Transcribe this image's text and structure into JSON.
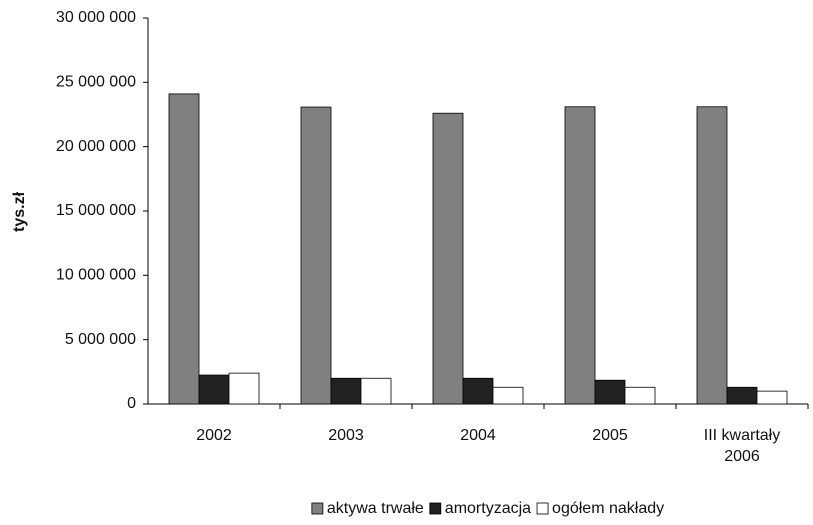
{
  "chart_data": {
    "type": "bar",
    "y_label": "tys.zł",
    "categories": [
      "2002",
      "2003",
      "2004",
      "2005",
      "III kwartały 2006"
    ],
    "series": [
      {
        "name": "aktywa trwałe",
        "color": "#808080",
        "values": [
          24100000,
          23080000,
          22600000,
          23100000,
          23100000
        ]
      },
      {
        "name": "amortyzacja",
        "color": "#222222",
        "values": [
          2250000,
          2000000,
          2000000,
          1850000,
          1300000
        ]
      },
      {
        "name": "ogółem nakłady",
        "color": "#ffffff",
        "values": [
          2400000,
          2000000,
          1300000,
          1300000,
          1000000
        ]
      }
    ],
    "ylim": [
      0,
      30000000
    ],
    "yticks": [
      0,
      {
        "value": 5000000,
        "label": "5 000 000"
      },
      {
        "value": 10000000,
        "label": "10 000 000"
      },
      {
        "value": 15000000,
        "label": "15 000 000"
      },
      {
        "value": 20000000,
        "label": "20 000 000"
      },
      {
        "value": 25000000,
        "label": "25 000 000"
      },
      {
        "value": 30000000,
        "label": "30 000 000"
      }
    ],
    "grid": false,
    "legend": "bottom"
  }
}
